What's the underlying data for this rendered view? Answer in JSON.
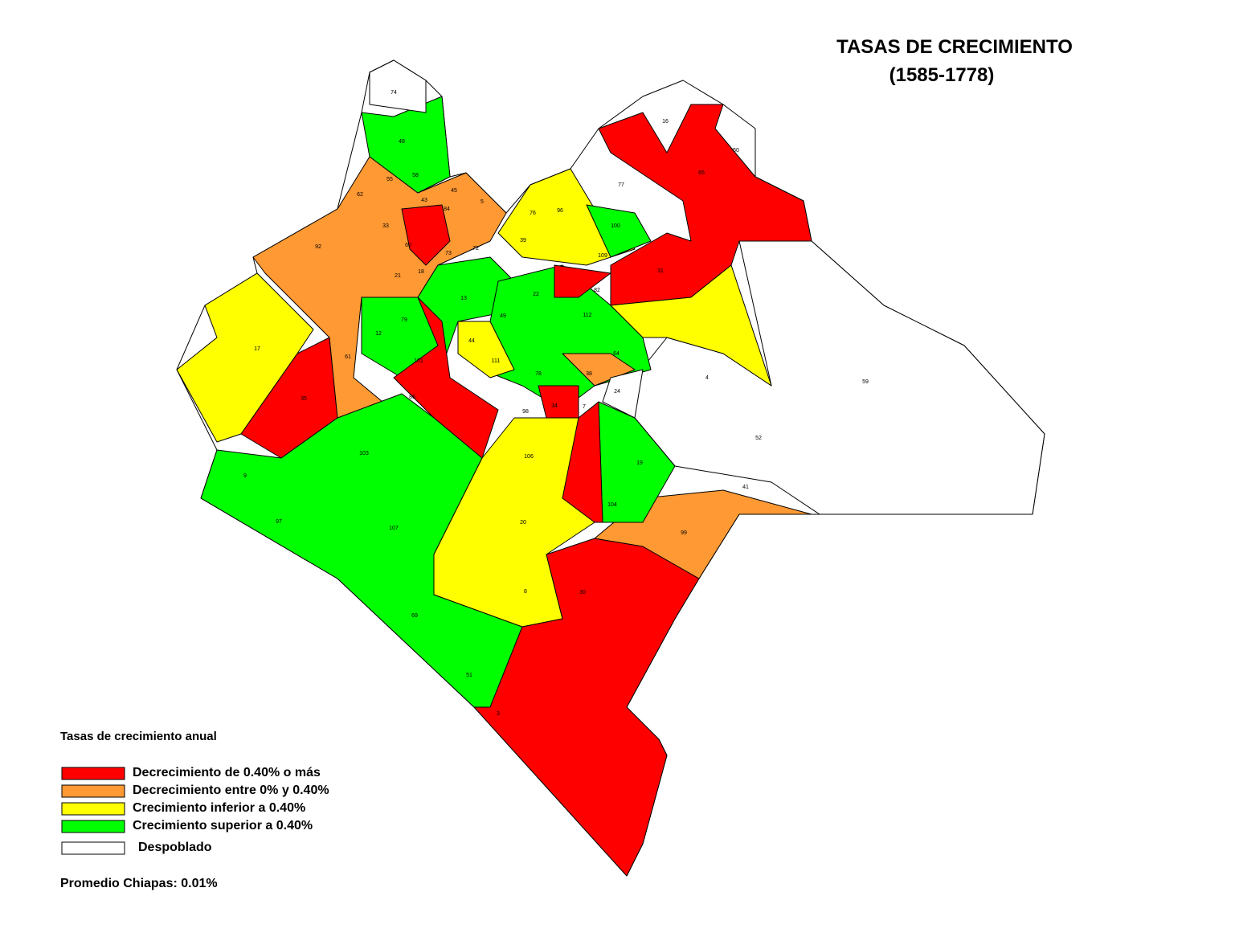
{
  "header": {
    "title": "TASAS DE CRECIMIENTO",
    "subtitle": "(1585-1778)"
  },
  "legend": {
    "title": "Tasas de crecimiento anual",
    "items": [
      {
        "label": "Decrecimiento de 0.40% o más",
        "color": "#ff0000"
      },
      {
        "label": "Decrecimiento entre 0% y 0.40%",
        "color": "#ff9933"
      },
      {
        "label": "Crecimiento inferior a 0.40%",
        "color": "#ffff00"
      },
      {
        "label": "Crecimiento superior a 0.40%",
        "color": "#00ff00"
      },
      {
        "label": "Despoblado",
        "color": "#ffffff"
      }
    ]
  },
  "average": "Promedio Chiapas: 0.01%",
  "region_labels": [
    "74",
    "48",
    "55",
    "58",
    "62",
    "43",
    "45",
    "5",
    "84",
    "33",
    "76",
    "96",
    "77",
    "16",
    "50",
    "65",
    "100",
    "39",
    "92",
    "60",
    "72",
    "73",
    "109",
    "21",
    "18",
    "31",
    "22",
    "82",
    "13",
    "79",
    "112",
    "49",
    "17",
    "44",
    "12",
    "101",
    "61",
    "64",
    "111",
    "78",
    "38",
    "4",
    "59",
    "24",
    "86",
    "35",
    "34",
    "7",
    "98",
    "52",
    "103",
    "106",
    "19",
    "9",
    "41",
    "104",
    "97",
    "107",
    "20",
    "99",
    "30",
    "8",
    "69",
    "51",
    "3"
  ]
}
